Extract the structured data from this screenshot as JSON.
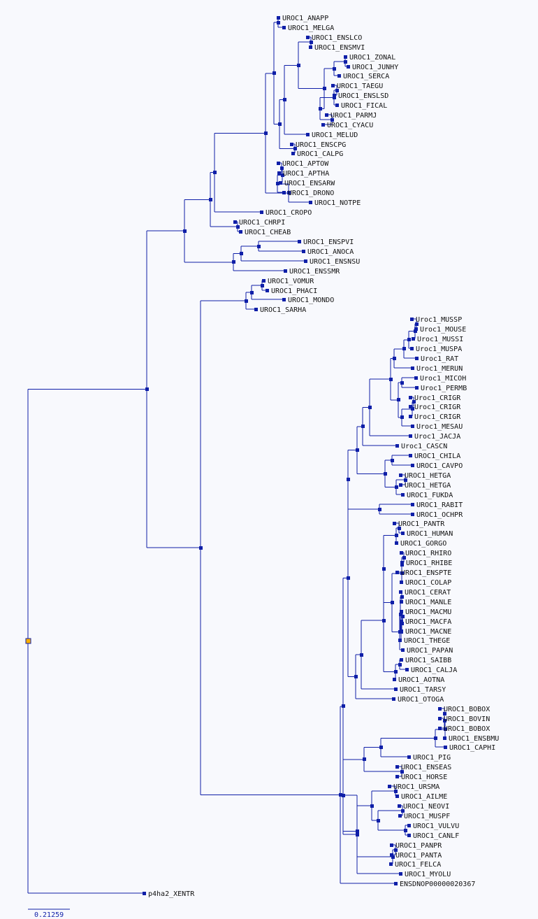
{
  "tree": {
    "leaves": [
      "UROC1_ANAPP",
      "UROC1_MELGA",
      "UROC1_ENSLCO",
      "UROC1_ENSMVI",
      "UROC1_ZONAL",
      "UROC1_JUNHY",
      "UROC1_SERCA",
      "UROC1_TAEGU",
      "UROC1_ENSLSD",
      "UROC1_FICAL",
      "UROC1_PARMJ",
      "UROC1_CYACU",
      "UROC1_MELUD",
      "UROC1_ENSCPG",
      "UROC1_CALPG",
      "UROC1_APTOW",
      "UROC1_APTHA",
      "UROC1_ENSARW",
      "UROC1_DRONO",
      "UROC1_NOTPE",
      "UROC1_CROPO",
      "UROC1_CHRPI",
      "UROC1_CHEAB",
      "UROC1_ENSPVI",
      "UROC1_ANOCA",
      "UROC1_ENSNSU",
      "UROC1_ENSSMR",
      "UROC1_VOMUR",
      "UROC1_PHACI",
      "UROC1_MONDO",
      "UROC1_SARHA",
      "Uroc1_MUSSP",
      "Uroc1_MOUSE",
      "Uroc1_MUSSI",
      "Uroc1_MUSPA",
      "Uroc1_RAT",
      "Uroc1_MERUN",
      "Uroc1_MICOH",
      "Uroc1_PERMB",
      "Uroc1_CRIGR",
      "Uroc1_CRIGR",
      "Uroc1_CRIGR",
      "Uroc1_MESAU",
      "Uroc1_JACJA",
      "Uroc1_CASCN",
      "UROC1_CHILA",
      "UROC1_CAVPO",
      "UROC1_HETGA",
      "UROC1_HETGA",
      "UROC1_FUKDA",
      "UROC1_RABIT",
      "UROC1_OCHPR",
      "UROC1_PANTR",
      "UROC1_HUMAN",
      "UROC1_GORGO",
      "UROC1_RHIRO",
      "UROC1_RHIBE",
      "UROC1_ENSPTE",
      "UROC1_COLAP",
      "UROC1_CERAT",
      "UROC1_MANLE",
      "UROC1_MACMU",
      "UROC1_MACFA",
      "UROC1_MACNE",
      "UROC1_THEGE",
      "UROC1_PAPAN",
      "UROC1_SAIBB",
      "UROC1_CALJA",
      "UROC1_AOTNA",
      "UROC1_TARSY",
      "UROC1_OTOGA",
      "UROC1_BOBOX",
      "UROC1_BOVIN",
      "UROC1_BOBOX",
      "UROC1_ENSBMU",
      "UROC1_CAPHI",
      "UROC1_PIG",
      "UROC1_ENSEAS",
      "UROC1_HORSE",
      "UROC1_URSMA",
      "UROC1_AILME",
      "UROC1_NEOVI",
      "UROC1_MUSPF",
      "UROC1_VULVU",
      "UROC1_CANLF",
      "UROC1_PANPR",
      "UROC1_PANTA",
      "UROC1_FELCA",
      "UROC1_MYOLU",
      "ENSDNOP00000020367",
      "p4ha2_XENTR"
    ]
  },
  "scale_bar": {
    "label": "0.21259"
  },
  "colors": {
    "branch": "#0f1fa8",
    "root": "#ffb000",
    "label": "#111111",
    "background": "#f8f9fd"
  }
}
